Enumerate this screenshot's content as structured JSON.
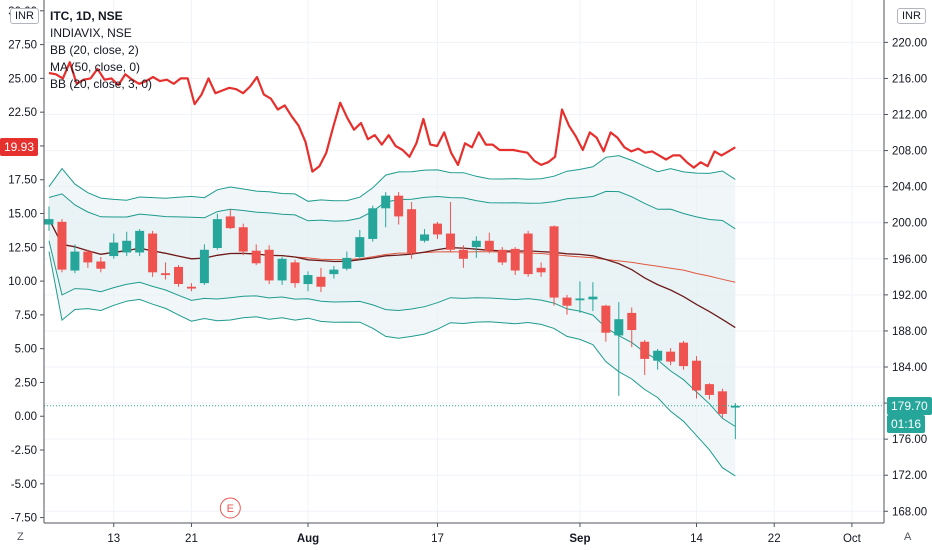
{
  "legend": {
    "title": "ITC, 1D, NSE",
    "line2": "INDIAVIX, NSE",
    "line3": "BB (20, close, 2)",
    "line4": "MA (50, close, 0)",
    "line5": "BB (20, close, 3, 0)"
  },
  "left_currency": "INR",
  "right_currency": "INR",
  "corner_left": "Z",
  "corner_right": "A",
  "tags": {
    "vix_value": "19.93",
    "price_value": "179.70",
    "countdown": "01:16"
  },
  "colors": {
    "up": "#26a69a",
    "down": "#ef5350",
    "vix": "#e5302d",
    "bb_band": "#1e9b8e",
    "ma50": "#e0583f",
    "basis": "#6d1c1c",
    "fill": "#e6f1f3"
  },
  "chart_data": {
    "type": "candlestick",
    "right_axis": {
      "ticks": [
        "168.00",
        "172.00",
        "176.00",
        "180.00",
        "184.00",
        "188.00",
        "192.00",
        "196.00",
        "200.00",
        "204.00",
        "208.00",
        "212.00",
        "216.00",
        "220.00"
      ],
      "range": [
        166.7,
        224.7
      ]
    },
    "left_axis": {
      "ticks": [
        "-7.50",
        "-5.00",
        "-2.50",
        "0.00",
        "2.50",
        "5.00",
        "7.50",
        "10.00",
        "12.50",
        "15.00",
        "17.50",
        "20.00",
        "22.50",
        "25.00",
        "27.50",
        "30.00"
      ],
      "range": [
        -7.9,
        30.8
      ]
    },
    "x_axis": {
      "labels": [
        "13",
        "21",
        "Aug",
        "17",
        "Sep",
        "14",
        "22",
        "Oct"
      ]
    },
    "events": [
      "E"
    ],
    "candles": [
      {
        "o": 199.8,
        "h": 201.8,
        "l": 199.1,
        "c": 200.4
      },
      {
        "o": 200.1,
        "h": 200.4,
        "l": 194.5,
        "c": 194.8
      },
      {
        "o": 194.7,
        "h": 197.6,
        "l": 194.4,
        "c": 196.8
      },
      {
        "o": 196.8,
        "h": 197.0,
        "l": 195.0,
        "c": 195.6
      },
      {
        "o": 195.7,
        "h": 196.2,
        "l": 194.5,
        "c": 194.9
      },
      {
        "o": 196.3,
        "h": 198.8,
        "l": 196.0,
        "c": 197.8
      },
      {
        "o": 196.7,
        "h": 199.0,
        "l": 196.3,
        "c": 198.0
      },
      {
        "o": 196.7,
        "h": 199.3,
        "l": 196.3,
        "c": 199.1
      },
      {
        "o": 198.8,
        "h": 199.1,
        "l": 194.0,
        "c": 194.5
      },
      {
        "o": 194.4,
        "h": 195.6,
        "l": 193.7,
        "c": 194.2
      },
      {
        "o": 195.1,
        "h": 195.3,
        "l": 192.9,
        "c": 193.2
      },
      {
        "o": 192.9,
        "h": 193.3,
        "l": 192.4,
        "c": 192.7
      },
      {
        "o": 193.3,
        "h": 197.6,
        "l": 193.1,
        "c": 197.0
      },
      {
        "o": 197.2,
        "h": 201.0,
        "l": 197.0,
        "c": 200.4
      },
      {
        "o": 200.7,
        "h": 201.5,
        "l": 199.3,
        "c": 199.4
      },
      {
        "o": 199.5,
        "h": 199.9,
        "l": 196.4,
        "c": 196.8
      },
      {
        "o": 196.9,
        "h": 197.6,
        "l": 195.3,
        "c": 195.5
      },
      {
        "o": 197.0,
        "h": 197.5,
        "l": 193.2,
        "c": 193.6
      },
      {
        "o": 193.6,
        "h": 196.2,
        "l": 193.1,
        "c": 196.0
      },
      {
        "o": 195.6,
        "h": 195.9,
        "l": 192.8,
        "c": 193.3
      },
      {
        "o": 193.2,
        "h": 194.6,
        "l": 192.4,
        "c": 194.2
      },
      {
        "o": 194.0,
        "h": 195.0,
        "l": 192.3,
        "c": 192.9
      },
      {
        "o": 194.3,
        "h": 195.2,
        "l": 193.8,
        "c": 194.8
      },
      {
        "o": 194.9,
        "h": 196.8,
        "l": 194.7,
        "c": 196.1
      },
      {
        "o": 196.2,
        "h": 199.2,
        "l": 195.9,
        "c": 198.4
      },
      {
        "o": 198.2,
        "h": 201.9,
        "l": 197.9,
        "c": 201.6
      },
      {
        "o": 201.6,
        "h": 203.4,
        "l": 199.5,
        "c": 203.0
      },
      {
        "o": 203.0,
        "h": 203.4,
        "l": 199.8,
        "c": 200.7
      },
      {
        "o": 201.5,
        "h": 202.3,
        "l": 196.0,
        "c": 196.6
      },
      {
        "o": 198.0,
        "h": 199.3,
        "l": 197.8,
        "c": 198.7
      },
      {
        "o": 199.9,
        "h": 200.1,
        "l": 198.2,
        "c": 198.7
      },
      {
        "o": 198.8,
        "h": 202.3,
        "l": 196.7,
        "c": 197.0
      },
      {
        "o": 197.0,
        "h": 197.5,
        "l": 195.0,
        "c": 196.0
      },
      {
        "o": 197.3,
        "h": 198.5,
        "l": 196.1,
        "c": 198.0
      },
      {
        "o": 198.0,
        "h": 198.9,
        "l": 196.6,
        "c": 196.9
      },
      {
        "o": 197.0,
        "h": 197.3,
        "l": 195.3,
        "c": 195.6
      },
      {
        "o": 197.1,
        "h": 197.3,
        "l": 194.2,
        "c": 194.7
      },
      {
        "o": 198.8,
        "h": 199.1,
        "l": 194.0,
        "c": 194.3
      },
      {
        "o": 195.0,
        "h": 195.6,
        "l": 194.0,
        "c": 194.5
      },
      {
        "o": 199.6,
        "h": 199.7,
        "l": 190.8,
        "c": 191.7
      },
      {
        "o": 191.7,
        "h": 192.0,
        "l": 189.8,
        "c": 190.8
      },
      {
        "o": 191.4,
        "h": 193.5,
        "l": 190.0,
        "c": 191.6
      },
      {
        "o": 191.5,
        "h": 193.4,
        "l": 190.2,
        "c": 191.8
      },
      {
        "o": 190.8,
        "h": 190.9,
        "l": 186.8,
        "c": 187.8
      },
      {
        "o": 187.5,
        "h": 191.2,
        "l": 180.8,
        "c": 189.3
      },
      {
        "o": 190.0,
        "h": 190.6,
        "l": 186.2,
        "c": 188.1
      },
      {
        "o": 186.8,
        "h": 187.0,
        "l": 183.1,
        "c": 184.9
      },
      {
        "o": 184.7,
        "h": 186.0,
        "l": 183.7,
        "c": 185.8
      },
      {
        "o": 185.7,
        "h": 186.1,
        "l": 184.2,
        "c": 184.6
      },
      {
        "o": 186.7,
        "h": 186.9,
        "l": 183.7,
        "c": 184.1
      },
      {
        "o": 184.7,
        "h": 185.2,
        "l": 180.5,
        "c": 181.4
      },
      {
        "o": 182.1,
        "h": 182.2,
        "l": 180.4,
        "c": 180.9
      },
      {
        "o": 181.3,
        "h": 181.6,
        "l": 178.4,
        "c": 178.8
      },
      {
        "o": 179.5,
        "h": 180.0,
        "l": 176.0,
        "c": 179.7
      }
    ],
    "indiavix": [
      25.4,
      25.3,
      25.0,
      26.2,
      24.6,
      24.9,
      25.0,
      25.7,
      24.9,
      25.0,
      24.5,
      25.3,
      24.9,
      24.6,
      24.8,
      25.1,
      24.8,
      24.9,
      24.6,
      25.0,
      25.0,
      23.1,
      23.8,
      25.0,
      23.9,
      24.1,
      24.3,
      24.2,
      23.9,
      24.4,
      25.1,
      23.8,
      23.5,
      22.7,
      23.0,
      22.2,
      21.5,
      20.3,
      18.1,
      18.5,
      19.5,
      21.4,
      23.2,
      22.1,
      21.2,
      21.7,
      20.5,
      20.8,
      20.1,
      20.8,
      20.0,
      19.7,
      19.2,
      20.2,
      22.0,
      20.1,
      20.0,
      21.0,
      19.5,
      18.6,
      20.2,
      19.9,
      21.0,
      20.1,
      20.1,
      19.7,
      19.7,
      19.7,
      19.6,
      19.5,
      18.9,
      18.6,
      18.8,
      19.2,
      22.7,
      21.5,
      20.7,
      19.7,
      21.0,
      20.6,
      19.6,
      21.0,
      20.6,
      19.9,
      19.6,
      19.8,
      19.5,
      19.6,
      19.3,
      19.0,
      19.3,
      19.3,
      18.8,
      18.4,
      18.8,
      18.5,
      19.6,
      19.3,
      19.6,
      19.9
    ]
  }
}
